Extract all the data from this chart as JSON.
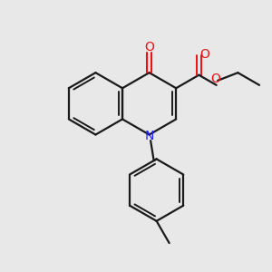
{
  "bg_color": "#e8e8e8",
  "bond_color": "#1a1a1a",
  "n_color": "#2020ff",
  "o_color": "#ee1111",
  "lw": 1.6,
  "lw_inner": 1.4,
  "figsize": [
    3.0,
    3.0
  ],
  "dpi": 100,
  "xlim": [
    0,
    10
  ],
  "ylim": [
    0,
    10
  ]
}
